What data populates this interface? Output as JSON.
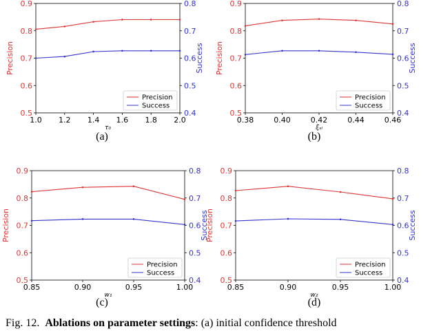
{
  "caption": {
    "figure_label": "Fig. 12.",
    "bold_title": "Ablations on parameter settings",
    "rest": ": (a) initial confidence threshold"
  },
  "colors": {
    "precision": "#dd3333",
    "success": "#3333cc",
    "axis": "#000000"
  },
  "chart_data": [
    {
      "type": "line",
      "panel_label": "(a)",
      "xlabel": "τ₀",
      "ylabel": "Precision",
      "y2label": "Success",
      "x": [
        1.0,
        1.2,
        1.4,
        1.6,
        1.8,
        2.0
      ],
      "xticks": [
        "1.0",
        "1.2",
        "1.4",
        "1.6",
        "1.8",
        "2.0"
      ],
      "xlim": [
        1.0,
        2.0
      ],
      "ylim": [
        0.5,
        0.9
      ],
      "yticks": [
        "0.5",
        "0.6",
        "0.7",
        "0.8",
        "0.9"
      ],
      "y2lim": [
        0.4,
        0.8
      ],
      "y2ticks": [
        "0.4",
        "0.5",
        "0.6",
        "0.7",
        "0.8"
      ],
      "series": [
        {
          "name": "Precision",
          "axis": "left",
          "values": [
            0.806,
            0.816,
            0.833,
            0.841,
            0.841,
            0.841
          ]
        },
        {
          "name": "Success",
          "axis": "right",
          "values": [
            0.6,
            0.606,
            0.624,
            0.627,
            0.627,
            0.627
          ]
        }
      ],
      "legend": [
        "Precision",
        "Success"
      ]
    },
    {
      "type": "line",
      "panel_label": "(b)",
      "xlabel": "ξₛₗ",
      "ylabel": "Precision",
      "y2label": "Success",
      "x": [
        0.38,
        0.4,
        0.42,
        0.44,
        0.46
      ],
      "xticks": [
        "0.38",
        "0.40",
        "0.42",
        "0.44",
        "0.46"
      ],
      "xlim": [
        0.38,
        0.46
      ],
      "ylim": [
        0.5,
        0.9
      ],
      "yticks": [
        "0.5",
        "0.6",
        "0.7",
        "0.8",
        "0.9"
      ],
      "y2lim": [
        0.4,
        0.8
      ],
      "y2ticks": [
        "0.4",
        "0.5",
        "0.6",
        "0.7",
        "0.8"
      ],
      "series": [
        {
          "name": "Precision",
          "axis": "left",
          "values": [
            0.818,
            0.838,
            0.843,
            0.838,
            0.825
          ]
        },
        {
          "name": "Success",
          "axis": "right",
          "values": [
            0.613,
            0.627,
            0.627,
            0.622,
            0.614
          ]
        }
      ],
      "legend": [
        "Precision",
        "Success"
      ]
    },
    {
      "type": "line",
      "panel_label": "(c)",
      "xlabel": "w₁",
      "ylabel": "Precision",
      "y2label": "Success",
      "x": [
        0.85,
        0.9,
        0.95,
        1.0
      ],
      "xticks": [
        "0.85",
        "0.90",
        "0.95",
        "1.00"
      ],
      "xlim": [
        0.85,
        1.0
      ],
      "ylim": [
        0.5,
        0.9
      ],
      "yticks": [
        "0.5",
        "0.6",
        "0.7",
        "0.8",
        "0.9"
      ],
      "y2lim": [
        0.4,
        0.8
      ],
      "y2ticks": [
        "0.4",
        "0.5",
        "0.6",
        "0.7",
        "0.8"
      ],
      "series": [
        {
          "name": "Precision",
          "axis": "left",
          "values": [
            0.823,
            0.839,
            0.843,
            0.795
          ]
        },
        {
          "name": "Success",
          "axis": "right",
          "values": [
            0.617,
            0.623,
            0.623,
            0.603
          ]
        }
      ],
      "legend": [
        "Precision",
        "Success"
      ]
    },
    {
      "type": "line",
      "panel_label": "(d)",
      "xlabel": "w₂",
      "ylabel": "Precision",
      "y2label": "Success",
      "x": [
        0.85,
        0.9,
        0.95,
        1.0
      ],
      "xticks": [
        "0.85",
        "0.90",
        "0.95",
        "1.00"
      ],
      "xlim": [
        0.85,
        1.0
      ],
      "ylim": [
        0.5,
        0.9
      ],
      "yticks": [
        "0.5",
        "0.6",
        "0.7",
        "0.8",
        "0.9"
      ],
      "y2lim": [
        0.4,
        0.8
      ],
      "y2ticks": [
        "0.4",
        "0.5",
        "0.6",
        "0.7",
        "0.8"
      ],
      "series": [
        {
          "name": "Precision",
          "axis": "left",
          "values": [
            0.827,
            0.843,
            0.822,
            0.797
          ]
        },
        {
          "name": "Success",
          "axis": "right",
          "values": [
            0.616,
            0.624,
            0.622,
            0.603
          ]
        }
      ],
      "legend": [
        "Precision",
        "Success"
      ]
    }
  ]
}
